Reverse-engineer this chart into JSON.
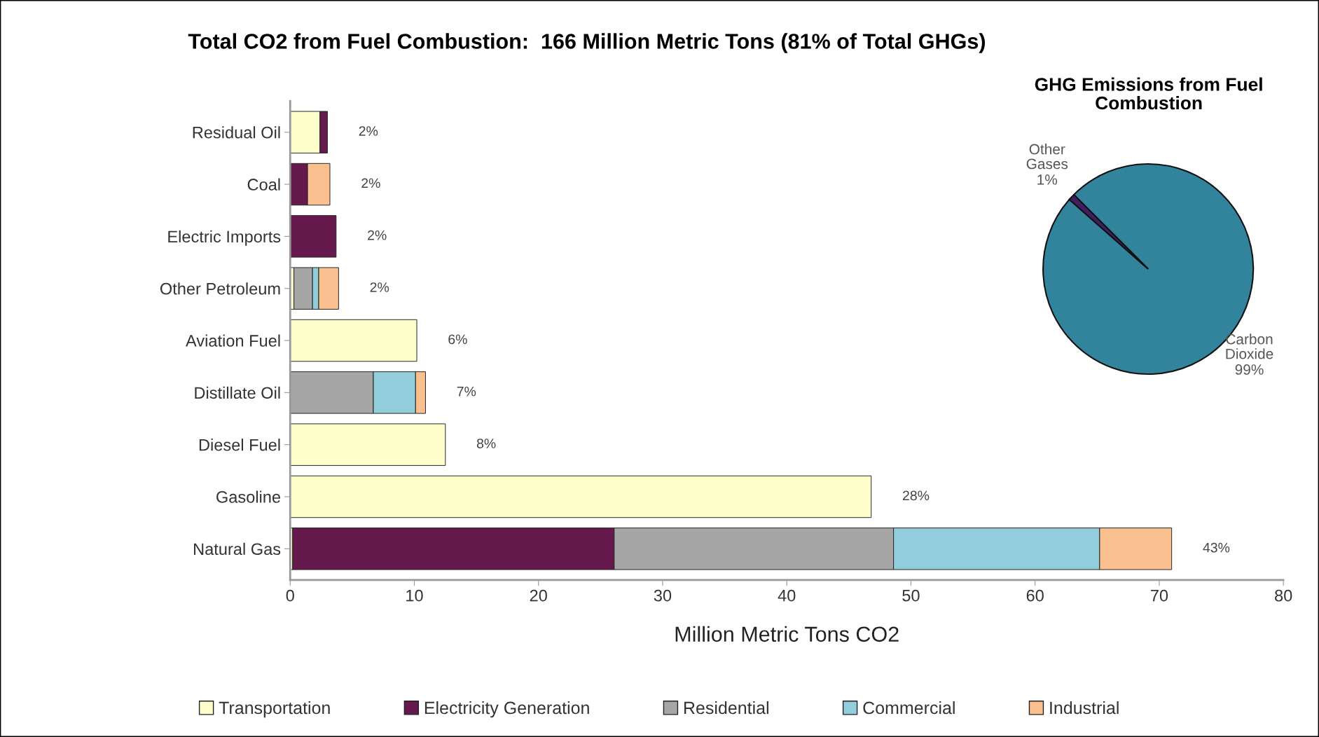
{
  "chart_data": [
    {
      "type": "bar",
      "orientation": "horizontal",
      "stacked": true,
      "title": "Total CO2 from Fuel Combustion:  166 Million Metric Tons (81% of Total GHGs)",
      "xlabel": "Million Metric Tons CO2",
      "categories": [
        "Residual Oil",
        "Coal",
        "Electric Imports",
        "Other Petroleum",
        "Aviation Fuel",
        "Distillate Oil",
        "Diesel Fuel",
        "Gasoline",
        "Natural Gas"
      ],
      "series": [
        {
          "name": "Transportation",
          "color": "#ffffcc",
          "values": [
            2.4,
            null,
            null,
            0.3,
            10.2,
            null,
            12.5,
            46.8,
            0.2
          ]
        },
        {
          "name": "Electricity Generation",
          "color": "#66194c",
          "values": [
            0.6,
            1.4,
            3.7,
            null,
            null,
            null,
            null,
            null,
            25.9
          ]
        },
        {
          "name": "Residential",
          "color": "#a6a6a6",
          "values": [
            null,
            null,
            null,
            1.5,
            null,
            6.7,
            null,
            null,
            22.5
          ]
        },
        {
          "name": "Commercial",
          "color": "#92cddc",
          "values": [
            null,
            null,
            null,
            0.5,
            null,
            3.4,
            null,
            null,
            16.6
          ]
        },
        {
          "name": "Industrial",
          "color": "#fac090",
          "values": [
            null,
            1.8,
            null,
            1.6,
            null,
            0.8,
            null,
            null,
            5.8
          ]
        }
      ],
      "annotations": [
        "2%",
        "2%",
        "2%",
        "2%",
        "6%",
        "7%",
        "8%",
        "28%",
        "43%"
      ],
      "xlim": [
        0,
        80
      ],
      "xticks": [
        0,
        10,
        20,
        30,
        40,
        50,
        60,
        70,
        80
      ],
      "grid": false,
      "legend": "bottom"
    },
    {
      "type": "pie",
      "title": "GHG Emissions from Fuel Combustion",
      "categories": [
        "Carbon Dioxide",
        "Other Gases"
      ],
      "values": [
        99,
        1
      ],
      "value_labels": [
        "99%",
        "1%"
      ],
      "colors": [
        "#31849b",
        "#3f1f5f"
      ]
    }
  ]
}
